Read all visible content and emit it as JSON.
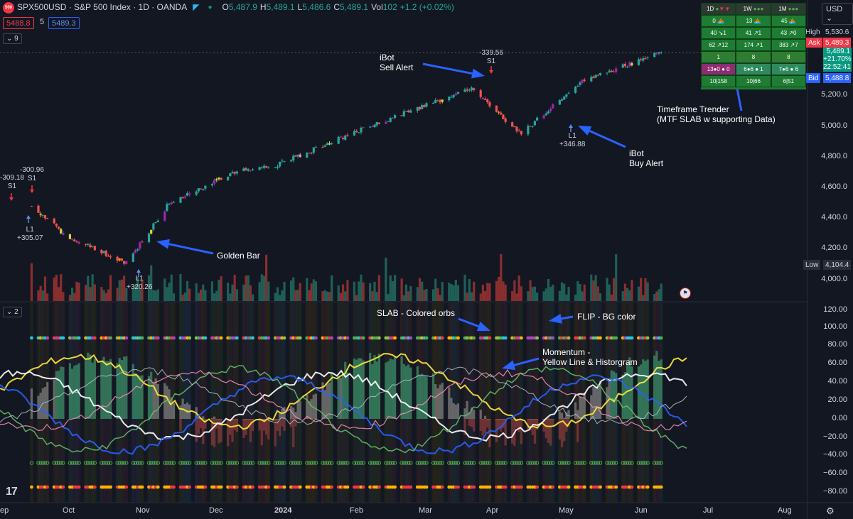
{
  "header": {
    "logo_text": "500",
    "symbol_title": "SPX500USD · S&P 500 Index · 1D · OANDA",
    "ohlc": [
      {
        "label": "O",
        "value": "5,487.9"
      },
      {
        "label": "H",
        "value": "5,489.1"
      },
      {
        "label": "L",
        "value": "5,486.6"
      },
      {
        "label": "C",
        "value": "5,489.1"
      }
    ],
    "vol_label": "Vol",
    "vol_value": "102",
    "change": "+1.2 (+0.02%)",
    "bid_box": "5488.8",
    "spread": "5",
    "ask_box": "5489.3",
    "indicator_count_top": "9",
    "indicator_count_bottom": "2",
    "currency": "USD"
  },
  "price_axis": {
    "ticks": [
      "5,200.0",
      "5,000.0",
      "4,800.0",
      "4,600.0",
      "4,400.0",
      "4,200.0",
      "4,000.0"
    ],
    "high_label": "High",
    "high_value": "5,530.6",
    "ask_label": "Ask",
    "ask_value": "5,489.3",
    "last_value": "5,489.1",
    "last_change": "+21.70%",
    "last_time": "22:52:41",
    "bid_label": "Bid",
    "bid_value": "5,488.8",
    "low_label": "Low",
    "low_value": "4,104.4"
  },
  "osc_axis": {
    "ticks": [
      "120.00",
      "100.00",
      "80.00",
      "60.00",
      "40.00",
      "20.00",
      "0.00",
      "−20.00",
      "−40.00",
      "−60.00",
      "−80.00"
    ]
  },
  "time_axis": {
    "labels": [
      "ep",
      "Oct",
      "Nov",
      "Dec",
      "2024",
      "Feb",
      "Mar",
      "Apr",
      "May",
      "Jun",
      "Jul",
      "Aug"
    ]
  },
  "mtf_table": {
    "header": [
      "1D",
      "1W",
      "1M"
    ],
    "rows": [
      [
        "0 🚣",
        "13 🚣",
        "45 🚣"
      ],
      [
        "40 ↘1",
        "41 ↗1",
        "43 ↗0"
      ],
      [
        "62 ↗12",
        "174 ↗1",
        "383 ↗7"
      ],
      [
        "1",
        "8",
        "8"
      ],
      [
        "13●0 ● 0",
        "6●6 ● 1",
        "7●6 ● 6"
      ],
      [
        "10|158",
        "10|66",
        "6|51"
      ]
    ]
  },
  "annotations": {
    "sell_alert": "iBot\nSell Alert",
    "buy_alert": "iBot\nBuy Alert",
    "golden_bar": "Golden Bar",
    "timeframe": "Timeframe Trender\n(MTF SLAB w supporting Data)",
    "slab": "SLAB - Colored orbs",
    "flip": "FLIP - BG color",
    "momentum": "Momentum -\nYellow Line & Historgram",
    "s1_left1": "-309.18\nS1",
    "s1_left2": "-300.96\nS1",
    "l1_left": "L1\n+305.07",
    "l1_golden": "L1\n+320.26",
    "s1_top": "-339.56\nS1",
    "l1_may": "L1\n+346.88"
  },
  "chart_data": {
    "type": "candlestick",
    "title": "SPX500USD · S&P 500 Index · 1D · OANDA",
    "x": [
      "Oct",
      "Nov",
      "Dec",
      "2024",
      "Feb",
      "Mar",
      "Apr",
      "May",
      "Jun",
      "Jul",
      "Aug"
    ],
    "ylim": [
      3900,
      5600
    ],
    "approx_close": [
      {
        "date": "2023-09-15",
        "close": 4490
      },
      {
        "date": "2023-10-01",
        "close": 4290
      },
      {
        "date": "2023-10-27",
        "close": 4120
      },
      {
        "date": "2023-11-15",
        "close": 4510
      },
      {
        "date": "2023-12-15",
        "close": 4720
      },
      {
        "date": "2024-01-02",
        "close": 4760
      },
      {
        "date": "2024-02-15",
        "close": 5030
      },
      {
        "date": "2024-03-28",
        "close": 5250
      },
      {
        "date": "2024-04-19",
        "close": 4960
      },
      {
        "date": "2024-05-15",
        "close": 5300
      },
      {
        "date": "2024-06-20",
        "close": 5489
      }
    ],
    "high": 5530.6,
    "low": 4104.4,
    "oscillator": {
      "ylim": [
        -90,
        125
      ]
    }
  },
  "colors": {
    "background": "#131722",
    "up": "#26a69a",
    "down": "#ef5350",
    "volume_up": "#1f5f57",
    "volume_down": "#8a2e2e",
    "annotation_arrow": "#2962ff",
    "momentum": "#ffeb3b",
    "mtf_bg": "#1e7d33"
  }
}
